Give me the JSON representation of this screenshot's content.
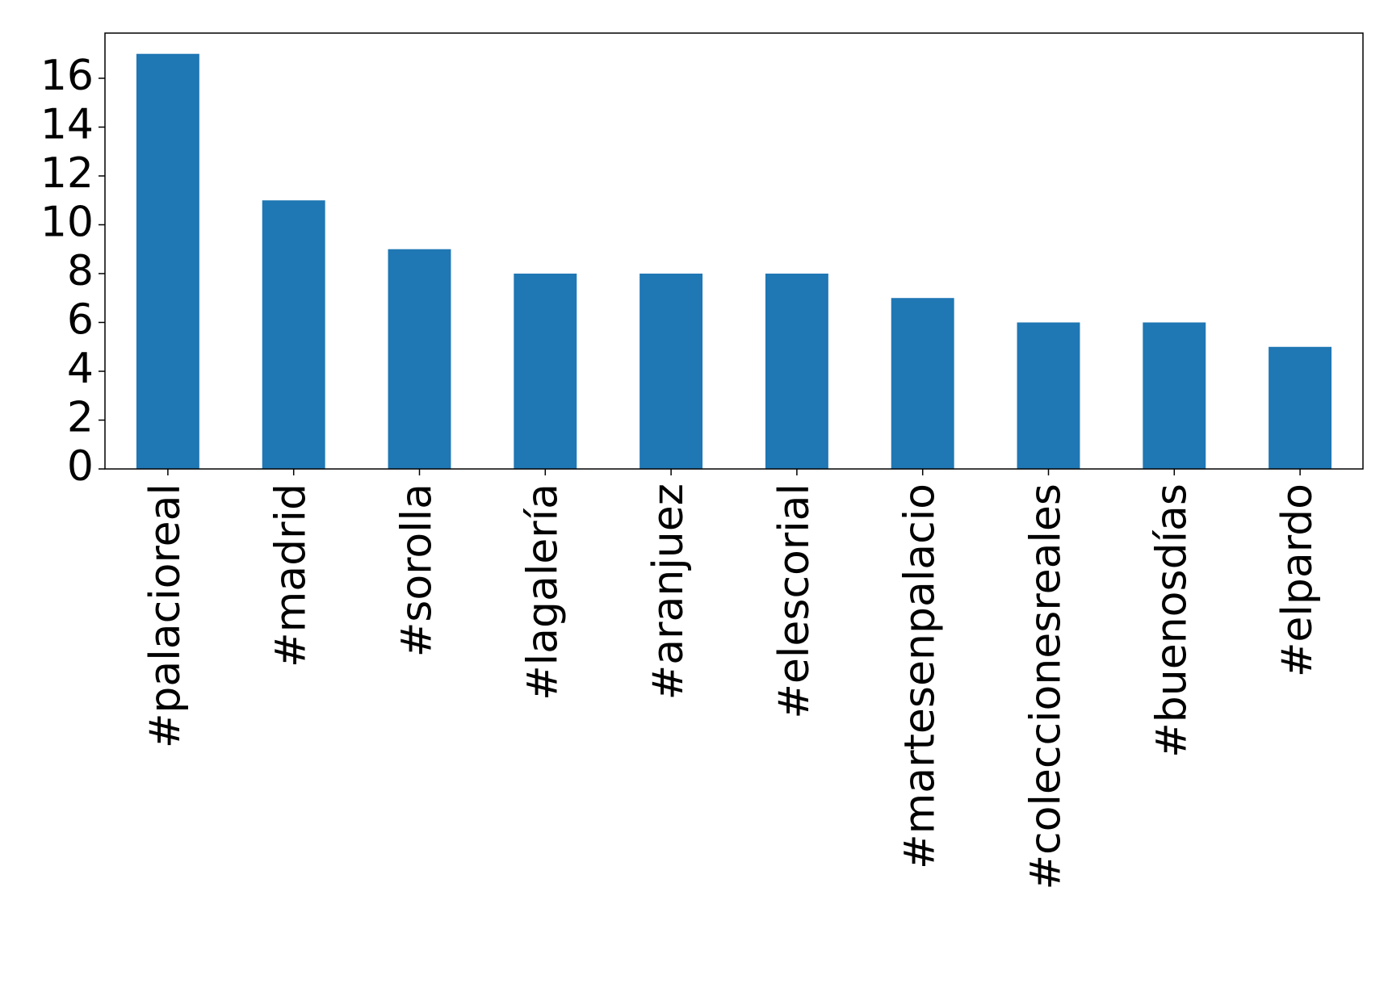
{
  "chart_data": {
    "type": "bar",
    "categories": [
      "#palacioreal",
      "#madrid",
      "#sorolla",
      "#lagalería",
      "#aranjuez",
      "#elescorial",
      "#martesenpalacio",
      "#coleccionesreales",
      "#buenosdías",
      "#elpardo"
    ],
    "values": [
      17,
      11,
      9,
      8,
      8,
      8,
      7,
      6,
      6,
      5
    ],
    "color": "#1f77b4",
    "ylim": [
      0,
      17.85
    ],
    "yticks": [
      0,
      2,
      4,
      6,
      8,
      10,
      12,
      14,
      16
    ],
    "grid": false
  }
}
